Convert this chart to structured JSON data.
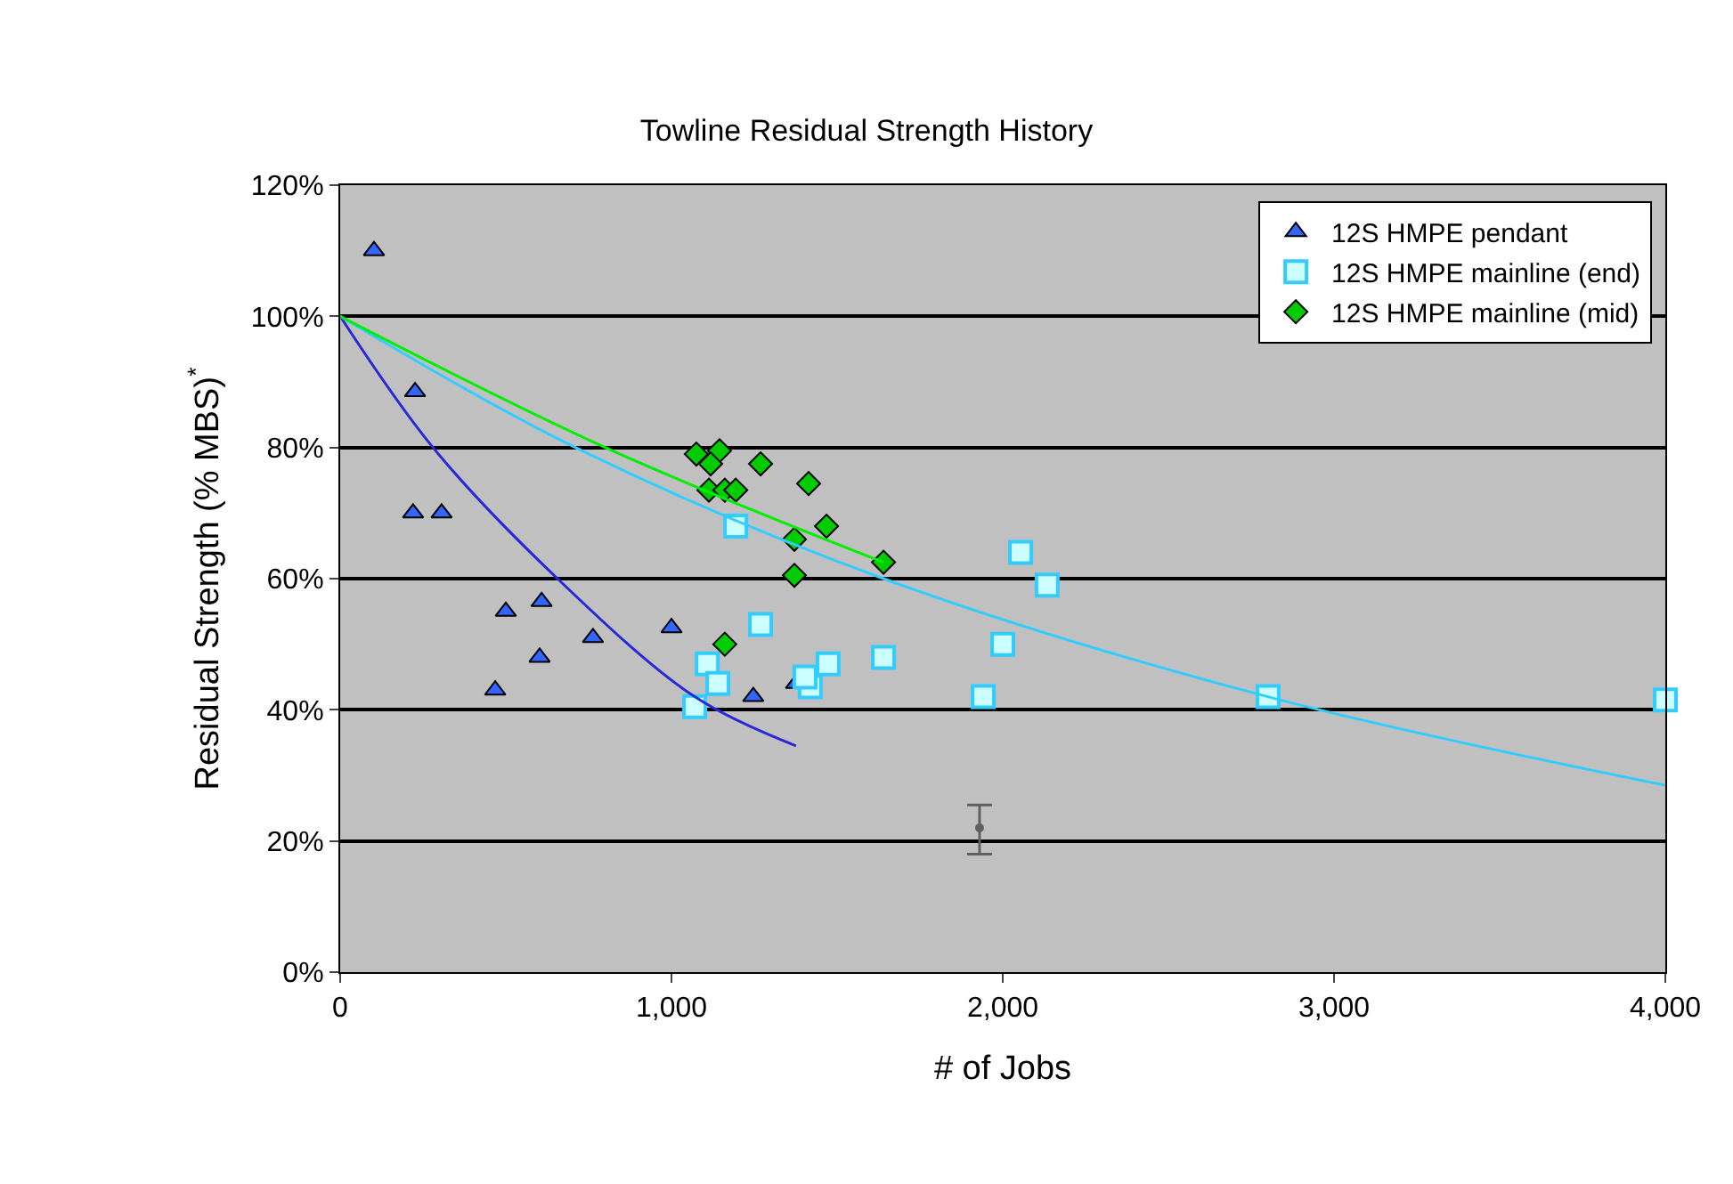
{
  "chart_data": {
    "type": "scatter",
    "title": "Towline Residual Strength History",
    "xlabel": "# of Jobs",
    "ylabel": "Residual Strength (% MBS)$^{*}$",
    "xlim": [
      0,
      4000
    ],
    "xticks": [
      0,
      {
        "value": 1000,
        "label": "1,000"
      },
      {
        "value": 2000,
        "label": "2,000"
      },
      {
        "value": 3000,
        "label": "3,000"
      },
      {
        "value": 4000,
        "label": "4,000"
      }
    ],
    "ylim": [
      0,
      120
    ],
    "yticks": [
      {
        "value": 0,
        "label": "0%"
      },
      {
        "value": 20,
        "label": "20%"
      },
      {
        "value": 40,
        "label": "40%"
      },
      {
        "value": 60,
        "label": "60%"
      },
      {
        "value": 80,
        "label": "80%"
      },
      {
        "value": 100,
        "label": "100%"
      },
      {
        "value": 120,
        "label": "120%"
      }
    ],
    "grid": "y",
    "legend": "top right",
    "series": [
      {
        "name": "12S HMPE pendant",
        "marker": "triangle",
        "color": "#3366ff",
        "x": [
          102,
          226,
          220,
          306,
          468,
          500,
          602,
          608,
          763,
          1000,
          1247,
          1376
        ],
        "values": [
          110,
          88.5,
          70,
          70,
          43,
          55,
          48,
          56.5,
          51,
          52.5,
          42,
          44
        ]
      },
      {
        "name": "12S HMPE mainline (end)",
        "marker": "square",
        "color": "#ccffff",
        "x": [
          1194,
          1269,
          1108,
          1140,
          1070,
          1473,
          1419,
          1403,
          1640,
          1941,
          2000,
          2054,
          2134,
          2801,
          4000
        ],
        "values": [
          68,
          53,
          47,
          44,
          40.5,
          47,
          43.5,
          45,
          48,
          42,
          50,
          64,
          59,
          42,
          41.5
        ]
      },
      {
        "name": "12S HMPE mainline (mid)",
        "marker": "diamond",
        "color": "#00cc00",
        "x": [
          1075,
          1145,
          1118,
          1269,
          1113,
          1161,
          1194,
          1414,
          1468,
          1371,
          1371,
          1161,
          1640
        ],
        "values": [
          79,
          79.5,
          77.5,
          77.5,
          73.5,
          73.5,
          73.5,
          74.5,
          68,
          66,
          60.5,
          50,
          62.5
        ]
      },
      {
        "type": "line",
        "color": "#2828d8",
        "x": [
          0,
          280,
          656,
          1070,
          1376
        ],
        "values": [
          100,
          80,
          60,
          42,
          34.5
        ]
      },
      {
        "type": "line",
        "color": "#33ccff",
        "x": [
          0,
          710,
          1640,
          2800,
          4000
        ],
        "values": [
          100,
          80,
          60,
          42,
          28.5
        ]
      },
      {
        "type": "line",
        "color": "#00ee00",
        "x": [
          0,
          800,
          1640
        ],
        "values": [
          100,
          80,
          62.5
        ]
      },
      {
        "marker": "circle",
        "color": "#606060",
        "x": [
          1930
        ],
        "values": [
          22
        ],
        "errors": [
          [
            18,
            25.5
          ]
        ]
      }
    ]
  }
}
